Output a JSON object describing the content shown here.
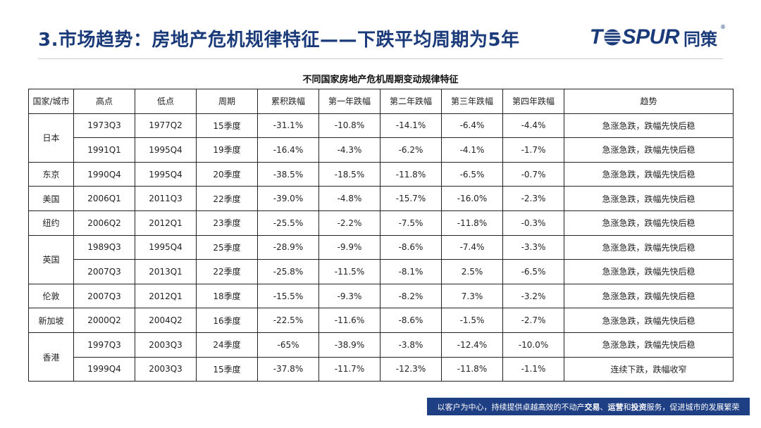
{
  "page_title": "3.市场趋势：房地产危机规律特征——下跌平均周期为5年",
  "brand": {
    "wordmark_left": "T",
    "wordmark_right": "SPUR",
    "chinese": "同策",
    "reg_mark": "®",
    "accent_color": "#1a3a7a"
  },
  "table": {
    "title": "不同国家房地产危机周期变动规律特征",
    "headers": [
      "国家/城市",
      "高点",
      "低点",
      "周期",
      "累积跌幅",
      "第一年跌幅",
      "第二年跌幅",
      "第三年跌幅",
      "第四年跌幅",
      "趋势"
    ],
    "groups": [
      {
        "region": "日本",
        "rows": [
          [
            "1973Q3",
            "1977Q2",
            "15季度",
            "-31.1%",
            "-10.8%",
            "-14.1%",
            "-6.4%",
            "-4.4%",
            "急涨急跌，跌幅先快后稳"
          ],
          [
            "1991Q1",
            "1995Q4",
            "19季度",
            "-16.4%",
            "-4.3%",
            "-6.2%",
            "-4.1%",
            "-1.7%",
            "急涨急跌，跌幅先快后稳"
          ]
        ]
      },
      {
        "region": "东京",
        "rows": [
          [
            "1990Q4",
            "1995Q4",
            "20季度",
            "-38.5%",
            "-18.5%",
            "-11.8%",
            "-6.5%",
            "-0.7%",
            "急涨急跌，跌幅先快后稳"
          ]
        ]
      },
      {
        "region": "美国",
        "rows": [
          [
            "2006Q1",
            "2011Q3",
            "22季度",
            "-39.0%",
            "-4.8%",
            "-15.7%",
            "-16.0%",
            "-2.3%",
            "急涨急跌，跌幅先快后稳"
          ]
        ]
      },
      {
        "region": "纽约",
        "rows": [
          [
            "2006Q2",
            "2012Q1",
            "23季度",
            "-25.5%",
            "-2.2%",
            "-7.5%",
            "-11.8%",
            "-0.3%",
            "急涨急跌，跌幅先快后稳"
          ]
        ]
      },
      {
        "region": "英国",
        "rows": [
          [
            "1989Q3",
            "1995Q4",
            "25季度",
            "-28.9%",
            "-9.9%",
            "-8.6%",
            "-7.4%",
            "-3.3%",
            "急涨急跌，跌幅先快后稳"
          ],
          [
            "2007Q3",
            "2013Q1",
            "22季度",
            "-25.8%",
            "-11.5%",
            "-8.1%",
            "2.5%",
            "-6.5%",
            "急涨急跌，跌幅先快后稳"
          ]
        ]
      },
      {
        "region": "伦敦",
        "rows": [
          [
            "2007Q3",
            "2012Q1",
            "18季度",
            "-15.5%",
            "-9.3%",
            "-8.2%",
            "7.3%",
            "-3.2%",
            "急涨急跌，跌幅先快后稳"
          ]
        ]
      },
      {
        "region": "新加坡",
        "rows": [
          [
            "2000Q2",
            "2004Q2",
            "16季度",
            "-22.5%",
            "-11.6%",
            "-8.6%",
            "-1.5%",
            "-2.7%",
            "急涨急跌，跌幅先快后稳"
          ]
        ]
      },
      {
        "region": "香港",
        "rows": [
          [
            "1997Q3",
            "2003Q3",
            "24季度",
            "-65%",
            "-38.9%",
            "-3.8%",
            "-12.4%",
            "-10.0%",
            "急涨急跌，跌幅先快后稳"
          ],
          [
            "1999Q4",
            "2003Q3",
            "15季度",
            "-37.8%",
            "-11.7%",
            "-12.3%",
            "-11.8%",
            "-1.1%",
            "连续下跌，跌幅收窄"
          ]
        ]
      }
    ]
  },
  "footer": {
    "prefix": "以客户为中心，持续提供卓越高效的不动产",
    "bold1": "交易",
    "sep1": "、",
    "bold2": "运营",
    "sep2": "和",
    "bold3": "投资",
    "suffix": "服务，促进城市的发展繁荣",
    "bg_color": "#1f3f84"
  }
}
